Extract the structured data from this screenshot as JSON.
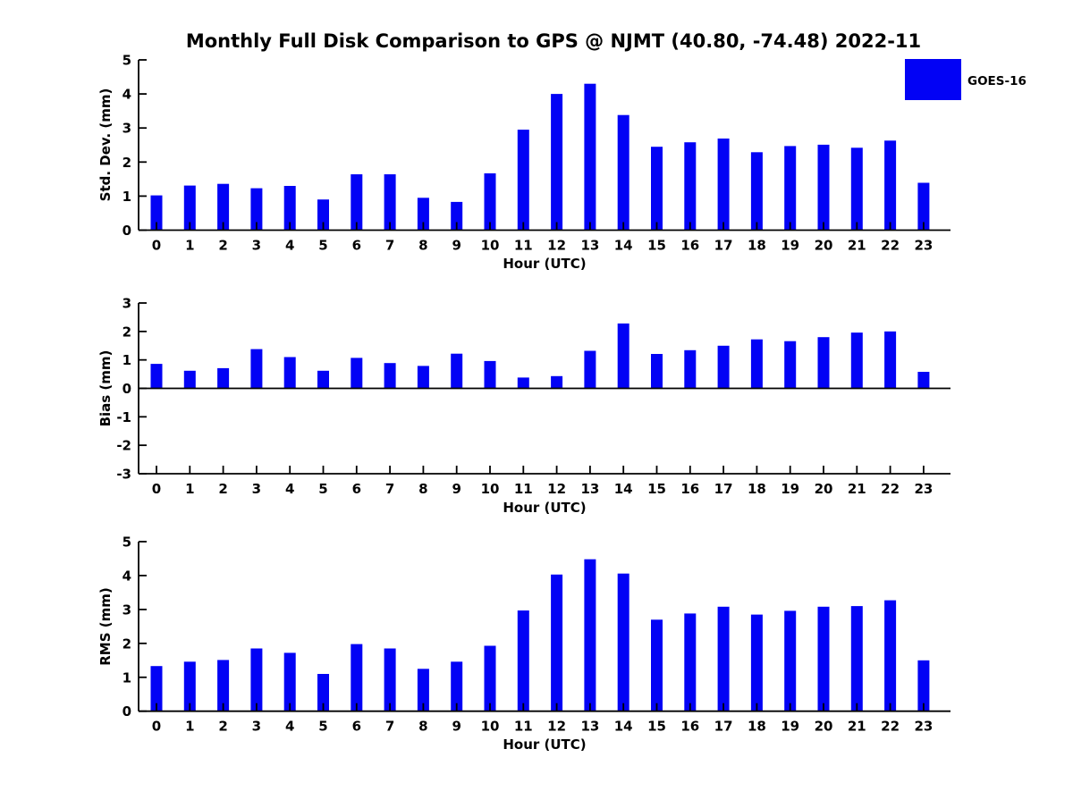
{
  "title": "Monthly Full Disk Comparison to GPS @ NJMT (40.80, -74.48) 2022-11",
  "legend": {
    "label": "GOES-16",
    "color": "#0202F5",
    "position": "upper right"
  },
  "colors": {
    "bar": "#0202F5",
    "axis": "#000000",
    "text": "#000000",
    "background": "#FFFFFF"
  },
  "chart_data": [
    {
      "type": "bar",
      "title": "",
      "xlabel": "Hour (UTC)",
      "ylabel": "Std. Dev. (mm)",
      "ylim": [
        0,
        5
      ],
      "yticks": [
        0,
        1,
        2,
        3,
        4,
        5
      ],
      "grid": false,
      "legend_position": "upper right",
      "categories": [
        "0",
        "1",
        "2",
        "3",
        "4",
        "5",
        "6",
        "7",
        "8",
        "9",
        "10",
        "11",
        "12",
        "13",
        "14",
        "15",
        "16",
        "17",
        "18",
        "19",
        "20",
        "21",
        "22",
        "23"
      ],
      "series": [
        {
          "name": "GOES-16",
          "values": [
            1.02,
            1.31,
            1.36,
            1.23,
            1.3,
            0.9,
            1.64,
            1.64,
            0.95,
            0.83,
            1.67,
            2.95,
            4.0,
            4.3,
            3.38,
            2.45,
            2.58,
            2.69,
            2.29,
            2.47,
            2.51,
            2.42,
            2.63,
            1.39
          ]
        }
      ]
    },
    {
      "type": "bar",
      "title": "",
      "xlabel": "Hour (UTC)",
      "ylabel": "Bias (mm)",
      "ylim": [
        -3,
        3
      ],
      "yticks": [
        -3,
        -2,
        -1,
        0,
        1,
        2,
        3
      ],
      "grid": false,
      "categories": [
        "0",
        "1",
        "2",
        "3",
        "4",
        "5",
        "6",
        "7",
        "8",
        "9",
        "10",
        "11",
        "12",
        "13",
        "14",
        "15",
        "16",
        "17",
        "18",
        "19",
        "20",
        "21",
        "22",
        "23"
      ],
      "series": [
        {
          "name": "GOES-16",
          "values": [
            0.86,
            0.62,
            0.71,
            1.38,
            1.1,
            0.62,
            1.07,
            0.89,
            0.79,
            1.22,
            0.96,
            0.38,
            0.43,
            1.32,
            2.28,
            1.21,
            1.34,
            1.5,
            1.72,
            1.66,
            1.8,
            1.96,
            2.0,
            0.58
          ]
        }
      ]
    },
    {
      "type": "bar",
      "title": "",
      "xlabel": "Hour (UTC)",
      "ylabel": "RMS (mm)",
      "ylim": [
        0,
        5
      ],
      "yticks": [
        0,
        1,
        2,
        3,
        4,
        5
      ],
      "grid": false,
      "categories": [
        "0",
        "1",
        "2",
        "3",
        "4",
        "5",
        "6",
        "7",
        "8",
        "9",
        "10",
        "11",
        "12",
        "13",
        "14",
        "15",
        "16",
        "17",
        "18",
        "19",
        "20",
        "21",
        "22",
        "23"
      ],
      "series": [
        {
          "name": "GOES-16",
          "values": [
            1.33,
            1.46,
            1.51,
            1.85,
            1.72,
            1.1,
            1.98,
            1.85,
            1.25,
            1.46,
            1.93,
            2.97,
            4.03,
            4.48,
            4.06,
            2.7,
            2.88,
            3.08,
            2.85,
            2.96,
            3.08,
            3.1,
            3.27,
            1.5
          ]
        }
      ]
    }
  ]
}
